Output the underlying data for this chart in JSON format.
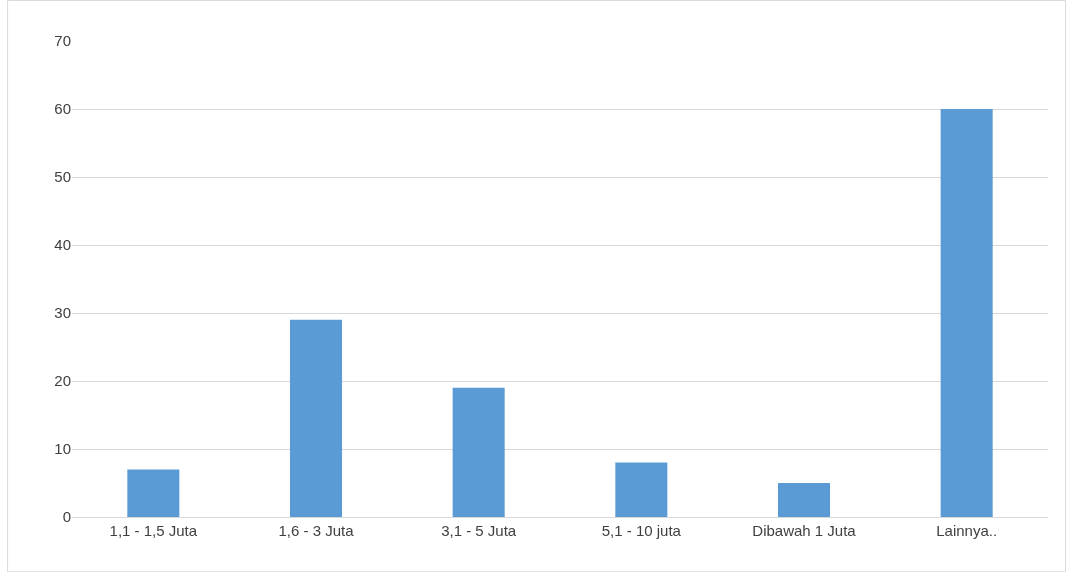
{
  "chart_data": {
    "type": "bar",
    "categories": [
      "1,1 - 1,5 Juta",
      "1,6 - 3 Juta",
      "3,1 - 5 Juta",
      "5,1 - 10 juta",
      "Dibawah 1 Juta",
      "Lainnya.."
    ],
    "values": [
      7,
      29,
      19,
      8,
      5,
      60
    ],
    "color": "#5b9bd5",
    "ylim": [
      0,
      70
    ],
    "yticks": [
      0,
      10,
      20,
      30,
      40,
      50,
      60,
      70
    ],
    "grid": "y"
  }
}
